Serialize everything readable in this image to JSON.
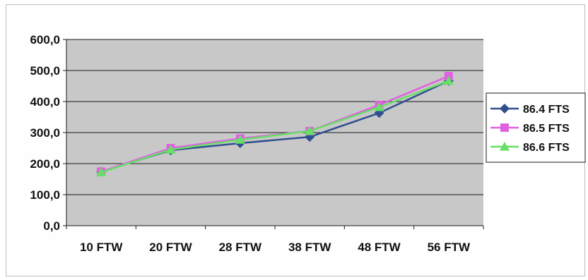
{
  "chart_data": {
    "type": "line",
    "categories": [
      "10 FTW",
      "20 FTW",
      "28 FTW",
      "38 FTW",
      "48 FTW",
      "56 FTW"
    ],
    "series": [
      {
        "name": "86.4 FTS",
        "color": "#2f4f8f",
        "marker": "diamond",
        "values": [
          174,
          243,
          266,
          286,
          363,
          467
        ]
      },
      {
        "name": "86.5 FTS",
        "color": "#e060e0",
        "marker": "square",
        "values": [
          174,
          250,
          281,
          305,
          389,
          482
        ]
      },
      {
        "name": "86.6 FTS",
        "color": "#66e066",
        "marker": "triangle",
        "values": [
          172,
          245,
          277,
          305,
          382,
          467
        ]
      }
    ],
    "y_ticks": [
      "0,0",
      "100,0",
      "200,0",
      "300,0",
      "400,0",
      "500,0",
      "600,0"
    ],
    "ylim": [
      0,
      600
    ],
    "grid": true,
    "plot_background": "#c8c8c8",
    "legend_position": "right",
    "title": "",
    "xlabel": "",
    "ylabel": ""
  }
}
